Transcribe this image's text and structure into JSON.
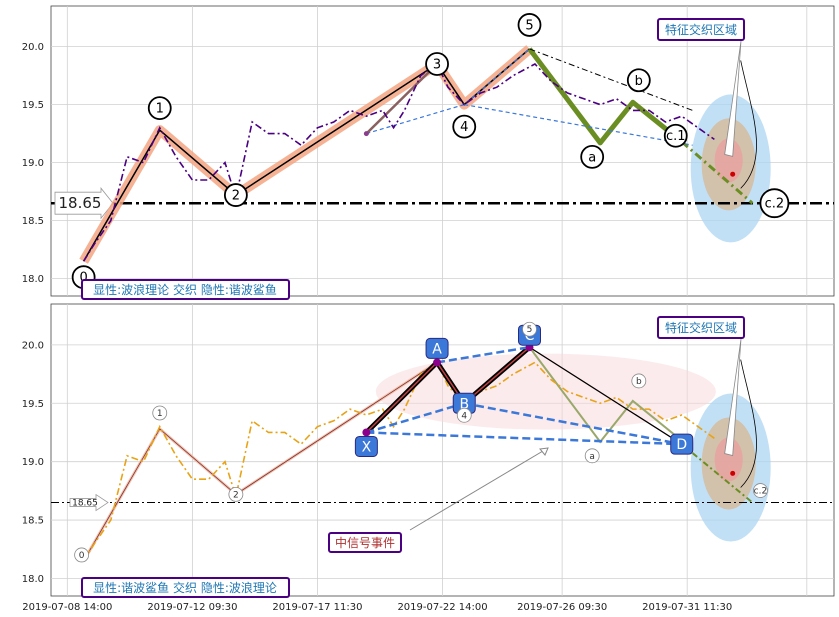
{
  "chart_data": [
    {
      "type": "line",
      "panel": "top",
      "ylim": [
        17.85,
        20.35
      ],
      "yticks": [
        18.0,
        18.5,
        19.0,
        19.5,
        20.0
      ],
      "grid": true,
      "hline": {
        "y": 18.65,
        "label": "18.65"
      },
      "price": [
        [
          0.3,
          18.15
        ],
        [
          0.5,
          18.3
        ],
        [
          0.8,
          18.5
        ],
        [
          1.1,
          19.05
        ],
        [
          1.4,
          19.0
        ],
        [
          1.7,
          19.3
        ],
        [
          2.0,
          19.05
        ],
        [
          2.3,
          18.85
        ],
        [
          2.6,
          18.85
        ],
        [
          2.9,
          19.0
        ],
        [
          3.1,
          18.7
        ],
        [
          3.4,
          19.35
        ],
        [
          3.7,
          19.25
        ],
        [
          4.0,
          19.25
        ],
        [
          4.3,
          19.15
        ],
        [
          4.6,
          19.3
        ],
        [
          4.9,
          19.35
        ],
        [
          5.2,
          19.45
        ],
        [
          5.5,
          19.4
        ],
        [
          5.8,
          19.45
        ],
        [
          6.0,
          19.3
        ],
        [
          6.2,
          19.45
        ],
        [
          6.5,
          19.75
        ],
        [
          6.8,
          19.85
        ],
        [
          7.0,
          19.65
        ],
        [
          7.3,
          19.5
        ],
        [
          7.6,
          19.6
        ],
        [
          7.9,
          19.65
        ],
        [
          8.2,
          19.75
        ],
        [
          8.6,
          19.85
        ],
        [
          8.9,
          19.7
        ],
        [
          9.2,
          19.6
        ],
        [
          9.5,
          19.55
        ],
        [
          9.8,
          19.5
        ],
        [
          10.1,
          19.55
        ],
        [
          10.4,
          19.45
        ],
        [
          10.7,
          19.45
        ],
        [
          11.0,
          19.35
        ],
        [
          11.3,
          19.4
        ],
        [
          11.6,
          19.3
        ],
        [
          11.9,
          19.2
        ]
      ],
      "elliott_waves": [
        {
          "label": "0",
          "x": 0.3,
          "y": 18.15
        },
        {
          "label": "1",
          "x": 1.7,
          "y": 19.28
        },
        {
          "label": "2",
          "x": 3.1,
          "y": 18.72
        },
        {
          "label": "3",
          "x": 6.8,
          "y": 19.85
        },
        {
          "label": "4",
          "x": 7.3,
          "y": 19.5
        },
        {
          "label": "5",
          "x": 8.5,
          "y": 19.98
        },
        {
          "label": "a",
          "x": 9.8,
          "y": 19.17
        },
        {
          "label": "b",
          "x": 10.4,
          "y": 19.52
        },
        {
          "label": "c.1",
          "x": 11.3,
          "y": 19.18
        },
        {
          "label": "c.2",
          "x": 12.6,
          "y": 18.65
        }
      ],
      "title_box": "显性:波浪理论 交织 隐性:谐波鲨鱼",
      "feature_box": "特征交织区域"
    },
    {
      "type": "line",
      "panel": "bottom",
      "ylim": [
        17.85,
        20.35
      ],
      "yticks": [
        18.0,
        18.5,
        19.0,
        19.5,
        20.0
      ],
      "grid": true,
      "hline": {
        "y": 18.65,
        "label": "18.65"
      },
      "harmonic": [
        {
          "label": "X",
          "x": 5.5,
          "y": 19.25
        },
        {
          "label": "A",
          "x": 6.8,
          "y": 19.85
        },
        {
          "label": "B",
          "x": 7.3,
          "y": 19.5
        },
        {
          "label": "C",
          "x": 8.5,
          "y": 19.98
        },
        {
          "label": "D",
          "x": 11.3,
          "y": 19.15
        }
      ],
      "xticks": [
        "2019-07-08 14:00",
        "2019-07-12 09:30",
        "2019-07-17 11:30",
        "2019-07-22 14:00",
        "2019-07-26 09:30",
        "2019-07-31 11:30"
      ],
      "title_box": "显性:谐波鲨鱼 交织 隐性:波浪理论",
      "feature_box": "特征交织区域",
      "signal_box": "中信号事件"
    }
  ],
  "labels": {
    "top_title": "显性:波浪理论 交织 隐性:谐波鲨鱼",
    "bottom_title": "显性:谐波鲨鱼 交织 隐性:波浪理论",
    "feature": "特征交织区域",
    "signal": "中信号事件",
    "level": "18.65"
  },
  "colors": {
    "price_top": "#4b0082",
    "price_bottom": "#e8a317",
    "wave_glow": "#f4a582",
    "harmonic_blue": "#3c78d8",
    "box_border": "#4b0082",
    "box_text": "#1f77b4",
    "target_outer": "#aed6f1",
    "target_mid": "#d9b38c",
    "target_inner": "#e8a0a0"
  }
}
